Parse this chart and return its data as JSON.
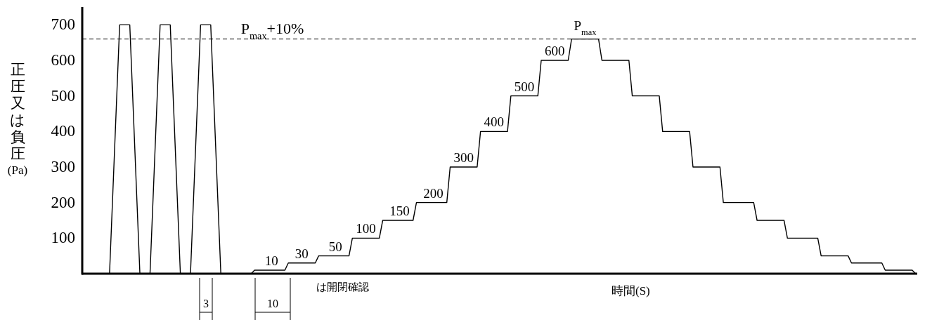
{
  "chart_data": {
    "type": "line",
    "xlabel": "時間(S)",
    "ylabel": "正圧又は負圧(Pa)",
    "categories": [
      null,
      null,
      null,
      null,
      null,
      null,
      null,
      null,
      null,
      null,
      null,
      null,
      null,
      null,
      null,
      null,
      null,
      null,
      null,
      null,
      null,
      null,
      null,
      null,
      null,
      null,
      null,
      null,
      null,
      null,
      null,
      null,
      null,
      null,
      null,
      null,
      null,
      null,
      null,
      null,
      null,
      null,
      null,
      null,
      null,
      null,
      null,
      null,
      null,
      null,
      null,
      null,
      null,
      null,
      null,
      null,
      null,
      null,
      null,
      null,
      null,
      null,
      null,
      null,
      null,
      null,
      null,
      null,
      null,
      null,
      null,
      null,
      null,
      null,
      null,
      null,
      null,
      null,
      null,
      null,
      null,
      null,
      null,
      null,
      null,
      null,
      null,
      null,
      null,
      null,
      null,
      null,
      null,
      null,
      null,
      null,
      null,
      null,
      null,
      null,
      null,
      null,
      null,
      null,
      null,
      null,
      null,
      null,
      null,
      null,
      null,
      null,
      null,
      null,
      null,
      null,
      null,
      null,
      null,
      null,
      null,
      null,
      null,
      null,
      null,
      null,
      null,
      null,
      null,
      null,
      null,
      null,
      null,
      null,
      null,
      null,
      null,
      null,
      null,
      null,
      null,
      null,
      null,
      null,
      null,
      null,
      null,
      null,
      null,
      null,
      null,
      null,
      null,
      null,
      null,
      null,
      null,
      null,
      null,
      null,
      null,
      null,
      null,
      null,
      null,
      null,
      null,
      null,
      null,
      null,
      null,
      null,
      null,
      null,
      null,
      null,
      null,
      null,
      null,
      null,
      null,
      null,
      null,
      null,
      null,
      null,
      null,
      null,
      null,
      null,
      null,
      null,
      null,
      null,
      null,
      null,
      null,
      null,
      null,
      null,
      null,
      null,
      null,
      null,
      null,
      null,
      null,
      null,
      null,
      null,
      null,
      null,
      null,
      null,
      null,
      null,
      null,
      null,
      null,
      null,
      null,
      null,
      null,
      null,
      null,
      null,
      null,
      null,
      null,
      null,
      null,
      null,
      null,
      null,
      null,
      null,
      null,
      null,
      null,
      null
    ],
    "series": [
      {
        "color": "#000000",
        "values": [
          0,
          233,
          467,
          700,
          700,
          700,
          700,
          467,
          233,
          0,
          0,
          0,
          0,
          233,
          467,
          700,
          700,
          700,
          700,
          467,
          233,
          0,
          0,
          0,
          0,
          233,
          467,
          700,
          700,
          700,
          700,
          467,
          233,
          0,
          0,
          0,
          0,
          0,
          0,
          0,
          0,
          0,
          0,
          10,
          10,
          10,
          10,
          10,
          10,
          10,
          10,
          10,
          10,
          30,
          30,
          30,
          30,
          30,
          30,
          30,
          30,
          30,
          50,
          50,
          50,
          50,
          50,
          50,
          50,
          50,
          50,
          50,
          100,
          100,
          100,
          100,
          100,
          100,
          100,
          100,
          100,
          150,
          150,
          150,
          150,
          150,
          150,
          150,
          150,
          150,
          150,
          200,
          200,
          200,
          200,
          200,
          200,
          200,
          200,
          200,
          200,
          300,
          300,
          300,
          300,
          300,
          300,
          300,
          300,
          300,
          400,
          400,
          400,
          400,
          400,
          400,
          400,
          400,
          400,
          500,
          500,
          500,
          500,
          500,
          500,
          500,
          500,
          500,
          600,
          600,
          600,
          600,
          600,
          600,
          600,
          600,
          600,
          660,
          660,
          660,
          660,
          660,
          660,
          660,
          660,
          660,
          600,
          600,
          600,
          600,
          600,
          600,
          600,
          600,
          600,
          500,
          500,
          500,
          500,
          500,
          500,
          500,
          500,
          500,
          400,
          400,
          400,
          400,
          400,
          400,
          400,
          400,
          400,
          300,
          300,
          300,
          300,
          300,
          300,
          300,
          300,
          300,
          200,
          200,
          200,
          200,
          200,
          200,
          200,
          200,
          200,
          200,
          150,
          150,
          150,
          150,
          150,
          150,
          150,
          150,
          150,
          100,
          100,
          100,
          100,
          100,
          100,
          100,
          100,
          100,
          100,
          50,
          50,
          50,
          50,
          50,
          50,
          50,
          50,
          50,
          30,
          30,
          30,
          30,
          30,
          30,
          30,
          30,
          30,
          30,
          10,
          10,
          10,
          10,
          10,
          10,
          10,
          10,
          10,
          0
        ],
        "value_labels": [
          null,
          null,
          null,
          null,
          null,
          null,
          null,
          null,
          null,
          null,
          null,
          null,
          null,
          null,
          null,
          null,
          null,
          null,
          null,
          null,
          null,
          null,
          null,
          null,
          null,
          null,
          null,
          null,
          null,
          null,
          null,
          null,
          null,
          null,
          null,
          null,
          null,
          null,
          null,
          null,
          null,
          null,
          null,
          null,
          null,
          null,
          null,
          null,
          "10",
          null,
          null,
          null,
          null,
          null,
          null,
          null,
          null,
          "30",
          null,
          null,
          null,
          null,
          null,
          null,
          null,
          null,
          null,
          "50",
          null,
          null,
          null,
          null,
          null,
          null,
          null,
          null,
          "100",
          null,
          null,
          null,
          null,
          null,
          null,
          null,
          null,
          null,
          "150",
          null,
          null,
          null,
          null,
          null,
          null,
          null,
          null,
          null,
          "200",
          null,
          null,
          null,
          null,
          null,
          null,
          null,
          null,
          "300",
          null,
          null,
          null,
          null,
          null,
          null,
          null,
          null,
          "400",
          null,
          null,
          null,
          null,
          null,
          null,
          null,
          null,
          "500",
          null,
          null,
          null,
          null,
          null,
          null,
          null,
          null,
          "600",
          null,
          null,
          null,
          null,
          null,
          null,
          null,
          null,
          "P$_{max}$",
          null,
          null,
          null,
          null,
          null,
          null,
          null,
          null,
          null,
          null,
          null,
          null,
          null,
          null,
          null,
          null,
          null,
          null,
          null,
          null,
          null,
          null,
          null,
          null,
          null,
          null,
          null,
          null,
          null,
          null,
          null,
          null,
          null,
          null,
          null,
          null,
          null,
          null,
          null,
          null,
          null,
          null,
          null,
          null,
          null,
          null,
          null,
          null,
          null,
          null,
          null,
          null,
          null,
          null,
          null,
          null,
          null,
          null,
          null,
          null,
          null,
          null,
          null,
          null,
          null,
          null,
          null,
          null,
          null,
          null,
          null,
          null,
          null,
          null,
          null,
          null,
          null,
          null,
          null,
          null,
          null,
          null,
          null,
          null,
          null,
          null,
          null,
          null,
          null,
          null,
          null,
          null,
          null,
          null,
          null,
          null,
          null,
          null
        ]
      }
    ],
    "ylim": [
      0,
      750
    ],
    "yticks": [
      100,
      200,
      300,
      400,
      500,
      600,
      700
    ],
    "tick_labels": "y",
    "ref_lines": [
      {
        "axis": "y",
        "value": 660,
        "label": "P$_{max}$+10%",
        "line_style": "dashed"
      }
    ],
    "annotations": [
      "3",
      "10",
      "は開閉確認"
    ]
  }
}
